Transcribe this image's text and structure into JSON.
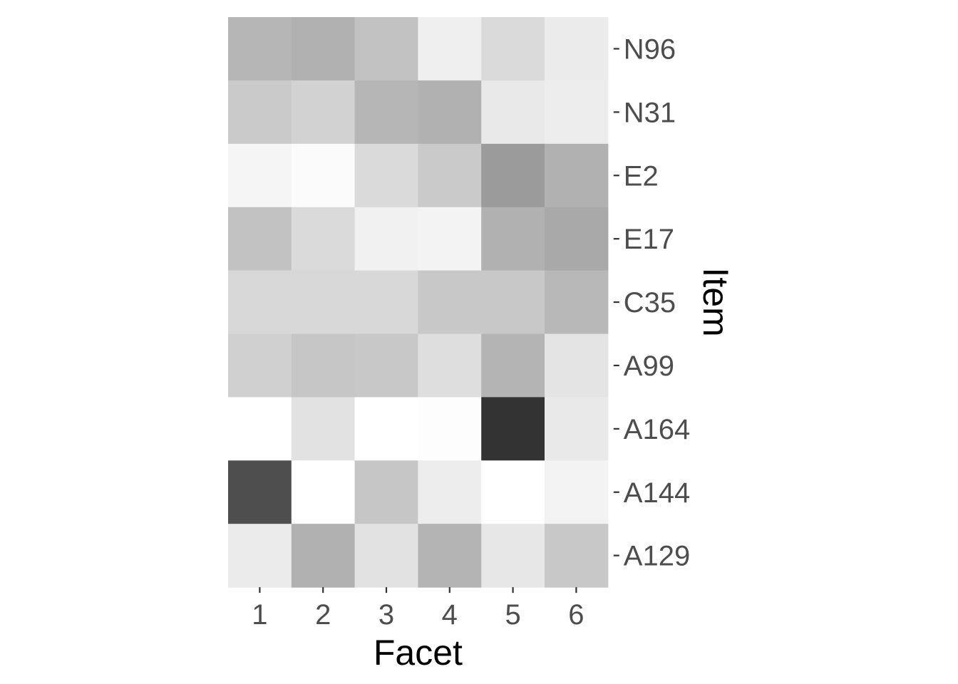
{
  "chart_data": {
    "type": "heatmap",
    "title": "",
    "xlabel": "Facet",
    "ylabel": "Item",
    "x_categories": [
      "1",
      "2",
      "3",
      "4",
      "5",
      "6"
    ],
    "y_categories_top_to_bottom": [
      "N96",
      "N31",
      "E2",
      "E17",
      "C35",
      "A99",
      "A164",
      "A144",
      "A129"
    ],
    "color_scale": {
      "low_color": "#ffffff",
      "high_color": "#333333",
      "value_range": [
        0,
        1
      ],
      "legend": "none"
    },
    "values": [
      [
        0.36,
        0.38,
        0.3,
        0.08,
        0.18,
        0.1
      ],
      [
        0.26,
        0.22,
        0.36,
        0.38,
        0.11,
        0.09
      ],
      [
        0.05,
        0.02,
        0.18,
        0.26,
        0.49,
        0.38
      ],
      [
        0.3,
        0.18,
        0.07,
        0.06,
        0.38,
        0.42
      ],
      [
        0.19,
        0.19,
        0.19,
        0.27,
        0.27,
        0.35
      ],
      [
        0.23,
        0.28,
        0.27,
        0.16,
        0.37,
        0.13
      ],
      [
        0.0,
        0.14,
        0.0,
        0.01,
        1.0,
        0.11
      ],
      [
        0.87,
        0.0,
        0.28,
        0.09,
        0.0,
        0.06
      ],
      [
        0.1,
        0.38,
        0.14,
        0.37,
        0.12,
        0.27
      ]
    ],
    "grid": false
  }
}
